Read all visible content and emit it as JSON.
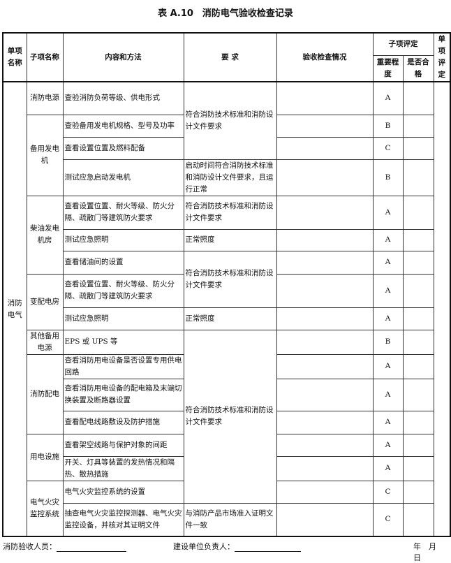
{
  "title": "表 A.10　消防电气验收检查记录",
  "headers": {
    "item_name": "单项名称",
    "sub_name": "子项名称",
    "content": "内容和方法",
    "requirement": "要 求",
    "inspection": "验收检查情况",
    "sub_eval": "子项评定",
    "importance": "重要程度",
    "qualified": "是否合格",
    "item_eval": "单项评定"
  },
  "item": "消防电气",
  "rows": [
    {
      "sub": "消防电源",
      "content": "查验消防负荷等级、供电形式",
      "req": "符合消防技术标准和消防设计文件要求",
      "grade": "A"
    },
    {
      "sub": "备用发电机",
      "content": "查验备用发电机规格、型号及功率",
      "grade": "B"
    },
    {
      "content": "查看设置位置及燃料配备",
      "grade": "C"
    },
    {
      "content": "测试应急启动发电机",
      "req": "启动时间符合消防技术标准和消防设计文件要求，且运行正常",
      "grade": "B"
    },
    {
      "sub": "柴油发电机房",
      "content": "查看设置位置、耐火等级、防火分隔、疏散门等建筑防火要求",
      "req": "符合消防技术标准和消防设计文件要求",
      "grade": "A"
    },
    {
      "content": "测试应急照明",
      "req": "正常照度",
      "grade": "A"
    },
    {
      "content": "查看储油间的设置",
      "req": "符合消防技术标准和消防设计文件要求",
      "grade": "A"
    },
    {
      "sub": "变配电房",
      "content": "查看设置位置、耐火等级、防火分隔、疏散门等建筑防火要求",
      "grade": "A"
    },
    {
      "content": "测试应急照明",
      "req": "正常照度",
      "grade": "A"
    },
    {
      "sub": "其他备用电源",
      "content": "EPS 或 UPS 等",
      "req": "符合消防技术标准和消防设计文件要求",
      "grade": "B"
    },
    {
      "sub": "消防配电",
      "content": "查看消防用电设备是否设置专用供电回路",
      "grade": "A"
    },
    {
      "content": "查看消防用电设备的配电箱及末端切换装置及断路器设置",
      "grade": "A"
    },
    {
      "content": "查看配电线路敷设及防护措施",
      "grade": "A"
    },
    {
      "sub": "用电设施",
      "content": "查看架空线路与保护对象的间距",
      "grade": "A"
    },
    {
      "content": "开关、灯具等装置的发热情况和隔热、散热措施",
      "grade": "A"
    },
    {
      "sub": "电气火灾监控系统",
      "content": "电气火灾监控系统的设置",
      "grade": "C"
    },
    {
      "content": "抽查电气火灾监控探测器、电气火灾监控设备，并核对其证明文件",
      "req": "与消防产品市场准入证明文件一致",
      "grade": "C"
    }
  ],
  "footer": {
    "inspector": "消防验收人员：",
    "owner": "建设单位负责人：",
    "date": "年　月　日"
  }
}
